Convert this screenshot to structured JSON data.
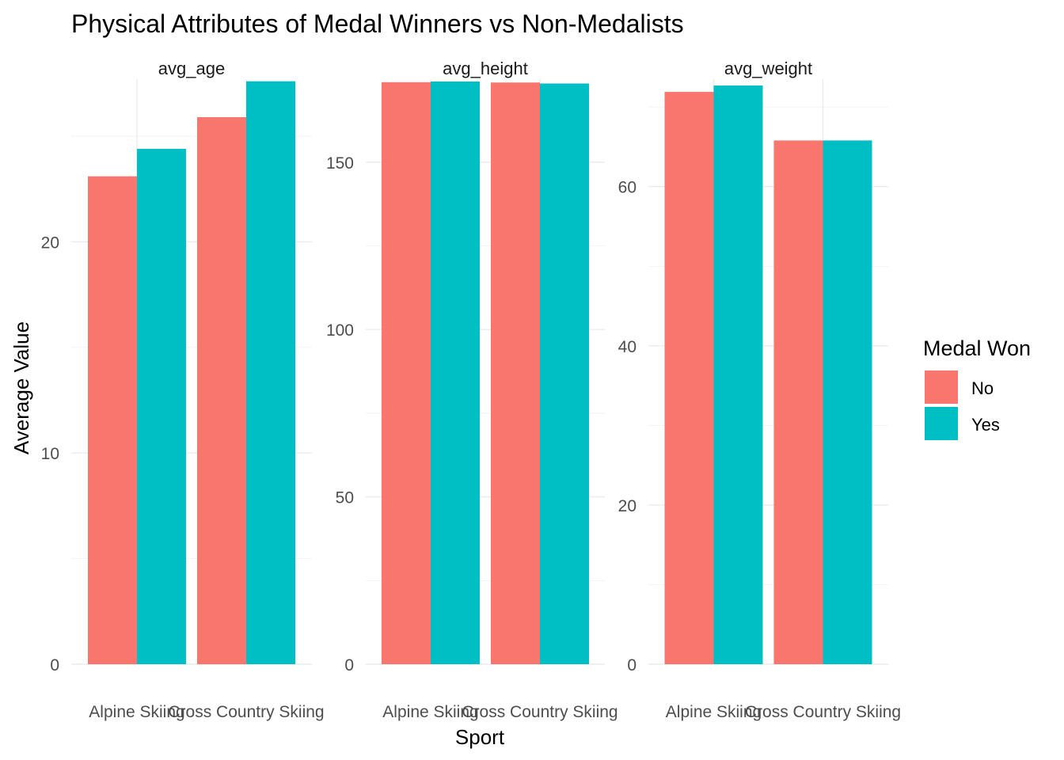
{
  "chart_data": {
    "type": "bar",
    "title": "Physical Attributes of Medal Winners vs Non-Medalists",
    "xlabel": "Sport",
    "ylabel": "Average Value",
    "categories": [
      "Alpine Skiing",
      "Cross Country Skiing"
    ],
    "legend": {
      "title": "Medal Won",
      "placement": "right",
      "entries": [
        {
          "name": "No",
          "color": "#F8766D"
        },
        {
          "name": "Yes",
          "color": "#00BFC4"
        }
      ]
    },
    "grid": true,
    "facets": [
      {
        "strip": "avg_age",
        "ylim": [
          0,
          27.7
        ],
        "yticks": [
          0,
          10,
          20
        ],
        "minor_ticks": [
          5,
          15,
          25
        ],
        "series": [
          {
            "name": "No",
            "values": [
              23.1,
              25.9
            ]
          },
          {
            "name": "Yes",
            "values": [
              24.4,
              27.6
            ]
          }
        ]
      },
      {
        "strip": "avg_height",
        "ylim": [
          0,
          174.8
        ],
        "yticks": [
          0,
          50,
          100,
          150
        ],
        "minor_ticks": [
          25,
          75,
          125
        ],
        "series": [
          {
            "name": "No",
            "values": [
              173.9,
              173.8
            ]
          },
          {
            "name": "Yes",
            "values": [
              174.1,
              173.5
            ]
          }
        ]
      },
      {
        "strip": "avg_weight",
        "ylim": [
          0,
          73.5
        ],
        "yticks": [
          0,
          20,
          40,
          60
        ],
        "minor_ticks": [
          10,
          30,
          50,
          70
        ],
        "series": [
          {
            "name": "No",
            "values": [
              71.9,
              65.8
            ]
          },
          {
            "name": "Yes",
            "values": [
              72.7,
              65.8
            ]
          }
        ]
      }
    ]
  }
}
